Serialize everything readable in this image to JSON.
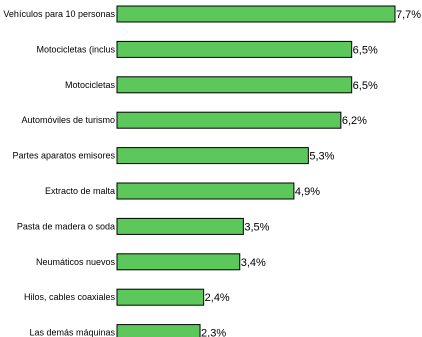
{
  "chart_data": {
    "type": "bar",
    "orientation": "horizontal",
    "categories": [
      "Vehículos para 10 personas",
      "Motocicletas (inclus",
      "Motocicletas",
      "Automóviles de turismo",
      "Partes aparatos emisores",
      "Extracto de malta",
      "Pasta de madera o soda",
      "Neumáticos nuevos",
      "Hilos, cables coaxiales",
      "Las demás máquinas"
    ],
    "values": [
      7.7,
      6.5,
      6.5,
      6.2,
      5.3,
      4.9,
      3.5,
      3.4,
      2.4,
      2.3
    ],
    "value_labels": [
      "7,7%",
      "6,5%",
      "6,5%",
      "6,2%",
      "5,3%",
      "4,9%",
      "3,5%",
      "3,4%",
      "2,4%",
      "2,3%"
    ],
    "unit": "%",
    "xlim": [
      0,
      7.7
    ],
    "grid": false,
    "legend": "none",
    "bar_color": "#5cc85c",
    "bar_border_color": "#000000"
  }
}
